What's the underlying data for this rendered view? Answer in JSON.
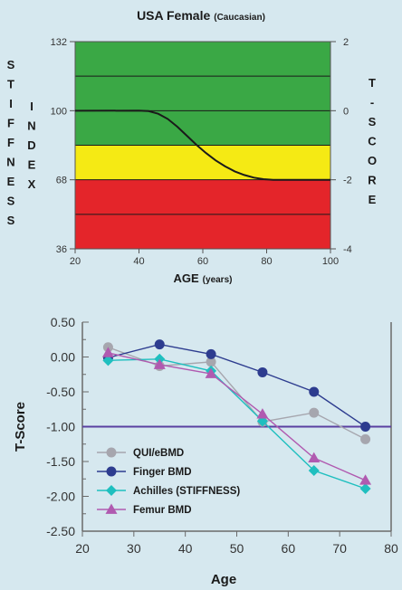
{
  "chart_data": [
    {
      "type": "area",
      "title": "USA Female",
      "title_qualifier": "(Caucasian)",
      "xlabel": "AGE",
      "xlabel_unit": "(years)",
      "ylabel_left": "STIFFNESS INDEX",
      "ylabel_left_words": [
        "STIFFNESS",
        "INDEX"
      ],
      "ylabel_right": "T-SCORE",
      "xlim": [
        20,
        100
      ],
      "ylim": [
        36,
        132
      ],
      "x_ticks": [
        20,
        40,
        60,
        80,
        100
      ],
      "y_ticks_left": [
        36,
        68,
        100,
        132
      ],
      "y_ticks_right": [
        {
          "label": "-4",
          "stiffness": 36
        },
        {
          "label": "-2",
          "stiffness": 68
        },
        {
          "label": "0",
          "stiffness": 100
        },
        {
          "label": "2",
          "stiffness": 132
        }
      ],
      "grid_lines_stiffness": [
        52,
        68,
        84,
        100,
        116
      ],
      "bands": [
        {
          "from": 100,
          "to": 132,
          "color": "#3aa845"
        },
        {
          "from": 84,
          "to": 100,
          "color": "#3aa845"
        },
        {
          "from": 68,
          "to": 84,
          "color": "#f5ea14"
        },
        {
          "from": 36,
          "to": 68,
          "color": "#e4252a"
        }
      ],
      "curve": {
        "x": [
          20,
          40,
          43,
          46,
          49,
          52,
          55,
          58,
          61,
          64,
          67,
          70,
          73,
          76,
          79,
          82,
          100
        ],
        "y": [
          100,
          100,
          99.8,
          98.6,
          96.2,
          92.6,
          88.4,
          84.2,
          80.4,
          77.0,
          74.2,
          71.9,
          70.2,
          69.0,
          68.3,
          68.0,
          68.0
        ]
      }
    },
    {
      "type": "line",
      "xlabel": "Age",
      "ylabel": "T-Score",
      "xlim": [
        20,
        80
      ],
      "ylim": [
        -2.5,
        0.5
      ],
      "x_ticks": [
        20,
        30,
        40,
        50,
        60,
        70,
        80
      ],
      "y_ticks": [
        0.5,
        0.0,
        -0.5,
        -1.0,
        -1.5,
        -2.0,
        -2.5
      ],
      "y_tick_labels": [
        "0.50",
        "0.00",
        "-0.50",
        "-1.00",
        "-1.50",
        "-2.00",
        "-2.50"
      ],
      "reference_line": {
        "y": -1.0,
        "color": "#5a3fa0"
      },
      "legend_position": "bottom-left",
      "x": [
        25,
        35,
        45,
        55,
        65,
        75
      ],
      "series": [
        {
          "name": "QUI/eBMD",
          "values": [
            0.14,
            -0.13,
            -0.07,
            -0.93,
            -0.8,
            -1.18
          ],
          "color": "#a6a6ae",
          "marker": "circle"
        },
        {
          "name": "Finger BMD",
          "values": [
            -0.01,
            0.18,
            0.04,
            -0.22,
            -0.5,
            -1.0
          ],
          "color": "#2d3c8f",
          "marker": "circle"
        },
        {
          "name": "Achilles (STIFFNESS)",
          "values": [
            -0.05,
            -0.03,
            -0.2,
            -0.92,
            -1.63,
            -1.89
          ],
          "color": "#1fbfbf",
          "marker": "diamond"
        },
        {
          "name": "Femur BMD",
          "values": [
            0.06,
            -0.11,
            -0.24,
            -0.82,
            -1.45,
            -1.77
          ],
          "color": "#b05ab0",
          "marker": "triangle"
        }
      ]
    }
  ]
}
